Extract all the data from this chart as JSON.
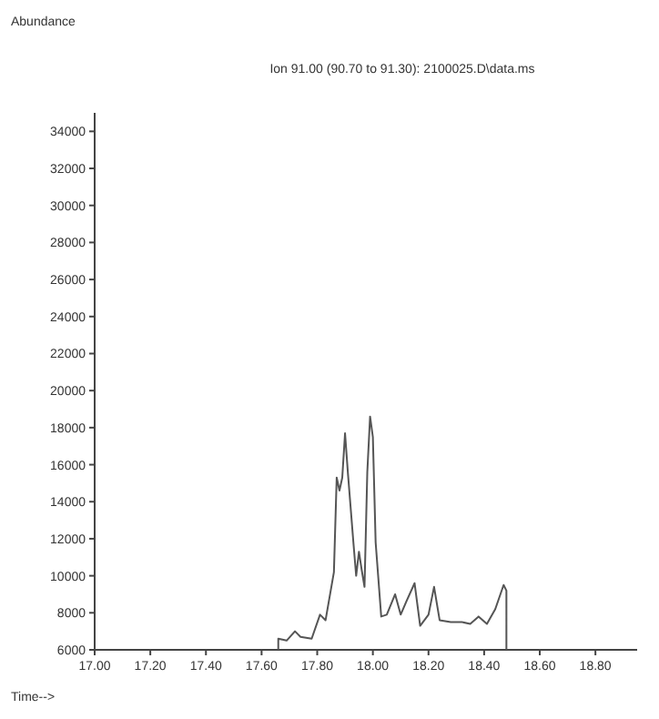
{
  "chart_data": {
    "type": "line",
    "title": "Ion 91.00 (90.70 to 91.30): 2100025.D\\data.ms",
    "annotations": [
      "Abundance",
      "Time-->"
    ],
    "xlim": [
      17.0,
      18.95
    ],
    "xticks": [
      {
        "value": 17.0,
        "label": "17.00"
      },
      {
        "value": 17.2,
        "label": "17.20"
      },
      {
        "value": 17.4,
        "label": "17.40"
      },
      {
        "value": 17.6,
        "label": "17.60"
      },
      {
        "value": 17.8,
        "label": "17.80"
      },
      {
        "value": 18.0,
        "label": "18.00"
      },
      {
        "value": 18.2,
        "label": "18.20"
      },
      {
        "value": 18.4,
        "label": "18.40"
      },
      {
        "value": 18.6,
        "label": "18.60"
      },
      {
        "value": 18.8,
        "label": "18.80"
      }
    ],
    "ylim": [
      6000,
      35000
    ],
    "yticks": [
      6000,
      8000,
      10000,
      12000,
      14000,
      16000,
      18000,
      20000,
      22000,
      24000,
      26000,
      28000,
      30000,
      32000,
      34000
    ],
    "series": [
      {
        "color": "#555555",
        "x": [
          17.66,
          17.66,
          17.69,
          17.72,
          17.74,
          17.78,
          17.81,
          17.83,
          17.86,
          17.87,
          17.88,
          17.89,
          17.9,
          17.91,
          17.93,
          17.94,
          17.95,
          17.96,
          17.97,
          17.98,
          17.99,
          18.0,
          18.01,
          18.03,
          18.05,
          18.08,
          18.1,
          18.12,
          18.15,
          18.17,
          18.2,
          18.22,
          18.24,
          18.28,
          18.32,
          18.35,
          18.38,
          18.41,
          18.44,
          18.47,
          18.48,
          18.48
        ],
        "values": [
          6000,
          6600,
          6500,
          7000,
          6700,
          6600,
          7900,
          7600,
          10200,
          15300,
          14600,
          15300,
          17700,
          15600,
          11800,
          10000,
          11300,
          10300,
          9400,
          15600,
          18600,
          17500,
          11800,
          7800,
          7900,
          9000,
          7900,
          8600,
          9600,
          7300,
          7900,
          9400,
          7600,
          7500,
          7500,
          7400,
          7800,
          7400,
          8200,
          9500,
          9200,
          6000
        ]
      }
    ]
  }
}
